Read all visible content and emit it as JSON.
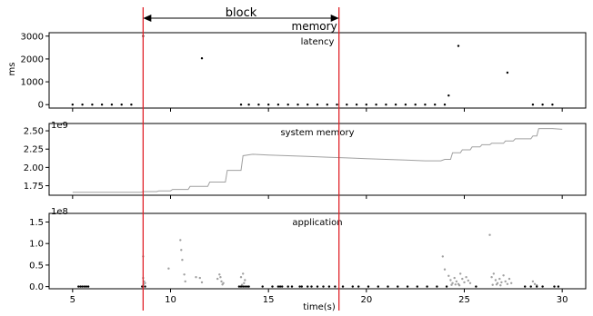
{
  "annotations": {
    "block_label": "block",
    "block_range": [
      8.6,
      18.6
    ],
    "memory_label": "memory"
  },
  "colors": {
    "marker_line": "#e0242b",
    "series_gray": "#a0a0a0",
    "points_black": "#000000"
  },
  "chart_data": [
    {
      "type": "scatter",
      "panel_label": "latency",
      "ylabel": "ms",
      "xlim": [
        3.8,
        31.2
      ],
      "ylim": [
        -150,
        3150
      ],
      "yticks": [
        0,
        1000,
        2000,
        3000
      ],
      "ytick_labels": [
        "0",
        "1000",
        "2000",
        "3000"
      ],
      "xticks": [
        5,
        10,
        15,
        20,
        25,
        30
      ],
      "series": [
        {
          "color": "#000000",
          "x": [
            5.0,
            5.5,
            6.0,
            6.5,
            7.0,
            7.5,
            8.0,
            8.6,
            11.6,
            13.6,
            14.0,
            14.5,
            15.0,
            15.5,
            16.0,
            16.5,
            17.0,
            17.5,
            18.0,
            18.5,
            19.0,
            19.5,
            20.0,
            20.5,
            21.0,
            21.5,
            22.0,
            22.5,
            23.0,
            23.5,
            24.0,
            24.2,
            24.7,
            27.2,
            28.5,
            29.0,
            29.5
          ],
          "y": [
            0,
            0,
            0,
            0,
            0,
            0,
            0,
            3000,
            2030,
            0,
            0,
            0,
            0,
            0,
            0,
            0,
            0,
            0,
            0,
            0,
            0,
            0,
            0,
            0,
            0,
            0,
            0,
            0,
            0,
            0,
            0,
            400,
            2570,
            1400,
            0,
            0,
            0
          ]
        }
      ]
    },
    {
      "type": "line",
      "panel_label": "system memory",
      "offset_label": "1e9",
      "xlim": [
        3.8,
        31.2
      ],
      "ylim": [
        1.62,
        2.6
      ],
      "yticks": [
        1.75,
        2.0,
        2.25,
        2.5
      ],
      "ytick_labels": [
        "1.75",
        "2.00",
        "2.25",
        "2.50"
      ],
      "xticks": [
        5,
        10,
        15,
        20,
        25,
        30
      ],
      "series": [
        {
          "color": "#a0a0a0",
          "x": [
            5.0,
            8.5,
            8.6,
            9.3,
            9.4,
            10.0,
            10.1,
            10.9,
            11.0,
            11.9,
            12.0,
            12.8,
            12.9,
            13.6,
            13.7,
            14.2,
            15.0,
            16.0,
            17.0,
            18.0,
            19.0,
            20.0,
            21.0,
            22.0,
            23.0,
            23.8,
            24.0,
            24.3,
            24.4,
            24.8,
            24.9,
            25.3,
            25.4,
            25.8,
            25.9,
            26.3,
            26.4,
            27.0,
            27.1,
            27.5,
            27.6,
            28.4,
            28.5,
            28.7,
            28.8,
            29.5,
            30.0
          ],
          "y": [
            1.66,
            1.66,
            1.67,
            1.67,
            1.68,
            1.68,
            1.7,
            1.7,
            1.74,
            1.74,
            1.8,
            1.8,
            1.96,
            1.96,
            2.16,
            2.18,
            2.17,
            2.16,
            2.15,
            2.14,
            2.13,
            2.12,
            2.11,
            2.1,
            2.09,
            2.09,
            2.11,
            2.11,
            2.2,
            2.2,
            2.24,
            2.24,
            2.28,
            2.28,
            2.31,
            2.31,
            2.33,
            2.33,
            2.36,
            2.36,
            2.39,
            2.39,
            2.43,
            2.43,
            2.53,
            2.53,
            2.52
          ]
        }
      ]
    },
    {
      "type": "scatter",
      "panel_label": "application",
      "offset_label": "1e8",
      "xlabel": "time(s)",
      "xlim": [
        3.8,
        31.2
      ],
      "ylim": [
        -0.05,
        1.7
      ],
      "yticks": [
        0.0,
        0.5,
        1.0,
        1.5
      ],
      "ytick_labels": [
        "0.0",
        "0.5",
        "1.0",
        "1.5"
      ],
      "xticks": [
        5,
        10,
        15,
        20,
        25,
        30
      ],
      "xtick_labels": [
        "5",
        "10",
        "15",
        "20",
        "25",
        "30"
      ],
      "series": [
        {
          "color": "#a0a0a0",
          "x": [
            8.6,
            8.6,
            8.65,
            8.7,
            8.62,
            9.9,
            10.5,
            10.55,
            10.6,
            10.7,
            10.75,
            11.3,
            11.5,
            11.6,
            12.4,
            12.5,
            12.55,
            12.6,
            12.7,
            12.65,
            13.6,
            13.7,
            13.8,
            13.75,
            13.65,
            23.9,
            24.0,
            24.2,
            24.3,
            24.4,
            24.5,
            24.6,
            24.7,
            24.8,
            24.9,
            25.0,
            25.1,
            25.2,
            25.3,
            24.35,
            24.55,
            24.75,
            26.3,
            26.4,
            26.5,
            26.6,
            26.7,
            26.8,
            26.9,
            27.0,
            27.1,
            27.2,
            26.45,
            26.65,
            26.85,
            27.3,
            27.4,
            28.5,
            28.6,
            28.7
          ],
          "y": [
            0.7,
            0.2,
            0.12,
            0.08,
            0.05,
            0.42,
            1.08,
            0.85,
            0.62,
            0.28,
            0.12,
            0.22,
            0.2,
            0.1,
            0.18,
            0.28,
            0.22,
            0.12,
            0.08,
            0.05,
            0.22,
            0.3,
            0.15,
            0.08,
            0.04,
            0.7,
            0.4,
            0.25,
            0.15,
            0.08,
            0.2,
            0.12,
            0.06,
            0.3,
            0.18,
            0.1,
            0.22,
            0.14,
            0.08,
            0.04,
            0.05,
            0.03,
            1.2,
            0.22,
            0.3,
            0.15,
            0.08,
            0.18,
            0.1,
            0.26,
            0.12,
            0.06,
            0.04,
            0.05,
            0.03,
            0.18,
            0.08,
            0.12,
            0.06,
            0.03
          ]
        },
        {
          "color": "#000000",
          "x": [
            5.3,
            5.4,
            5.5,
            5.6,
            5.7,
            5.8,
            8.55,
            8.7,
            13.5,
            13.6,
            13.7,
            13.8,
            13.9,
            14.0,
            14.7,
            15.2,
            15.5,
            15.6,
            15.7,
            16.0,
            16.2,
            16.6,
            16.7,
            17.0,
            17.2,
            17.5,
            17.8,
            18.1,
            18.4,
            18.8,
            19.3,
            19.6,
            20.1,
            20.6,
            21.1,
            21.6,
            22.1,
            22.6,
            23.1,
            23.6,
            24.1,
            25.6,
            28.1,
            28.4,
            28.7,
            29.0,
            29.6,
            29.8
          ],
          "y": [
            0,
            0,
            0,
            0,
            0,
            0,
            0,
            0,
            0,
            0,
            0,
            0,
            0,
            0,
            0,
            0,
            0,
            0,
            0,
            0,
            0,
            0,
            0,
            0,
            0,
            0,
            0,
            0,
            0,
            0,
            0,
            0,
            0,
            0,
            0,
            0,
            0,
            0,
            0,
            0,
            0,
            0,
            0,
            0,
            0,
            0,
            0,
            0
          ]
        }
      ]
    }
  ]
}
